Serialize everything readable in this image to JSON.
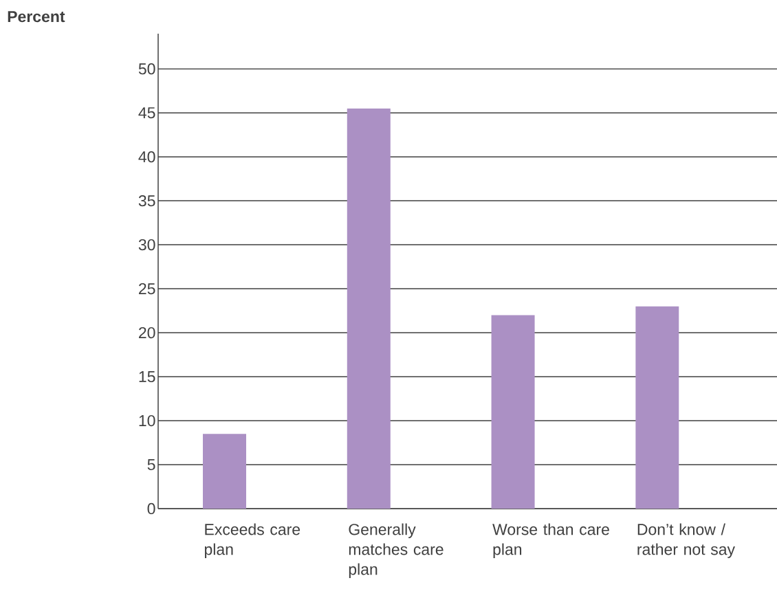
{
  "chart_data": {
    "type": "bar",
    "ylabel": "Percent",
    "categories": [
      "Exceeds care plan",
      "Generally matches care plan",
      "Worse than care plan",
      "Don’t know / rather not say"
    ],
    "values": [
      8.5,
      45.5,
      22,
      23
    ],
    "color": "#ab90c4",
    "ylim": [
      0,
      54
    ],
    "yticks": [
      0,
      5,
      10,
      15,
      20,
      25,
      30,
      35,
      40,
      45,
      50
    ],
    "grid": "y"
  }
}
